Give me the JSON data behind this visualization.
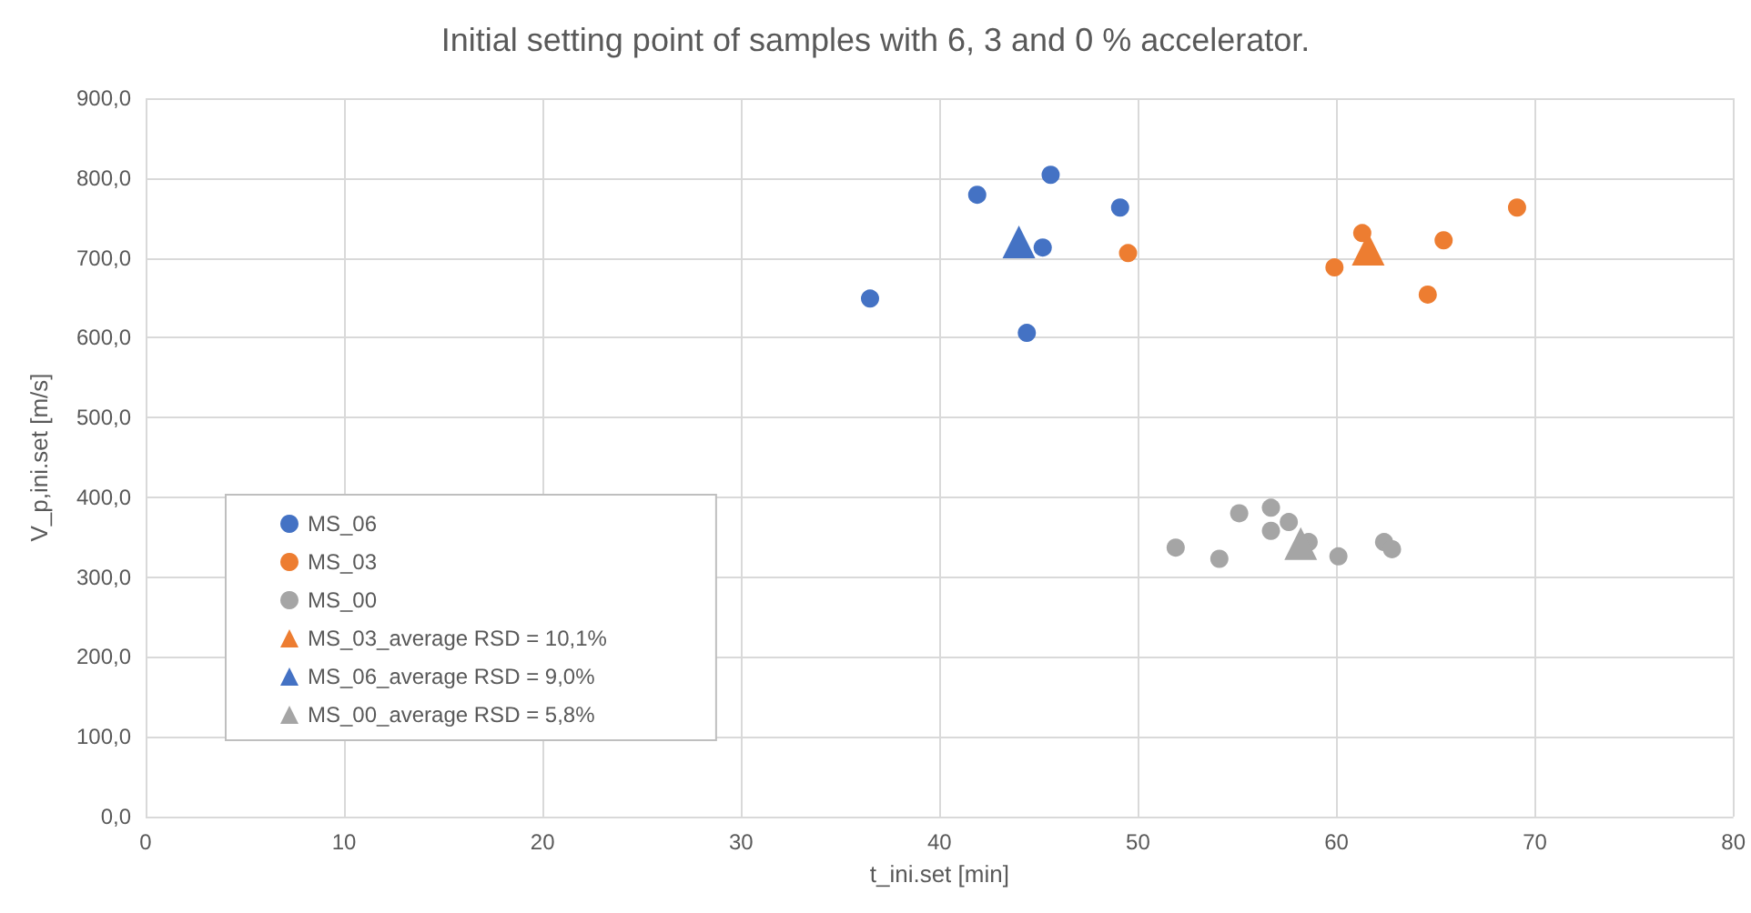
{
  "chart_data": {
    "type": "scatter",
    "title": "Initial setting point of samples with 6, 3 and 0 % accelerator.",
    "xlabel": "t_ini.set [min]",
    "ylabel": "V_p,ini.set [m/s]",
    "xlim": [
      0,
      80
    ],
    "xticks": [
      0,
      10,
      20,
      30,
      40,
      50,
      60,
      70,
      80
    ],
    "ylim": [
      0,
      900
    ],
    "yticks": [
      {
        "value": 0,
        "label": "0,0"
      },
      {
        "value": 100,
        "label": "100,0"
      },
      {
        "value": 200,
        "label": "200,0"
      },
      {
        "value": 300,
        "label": "300,0"
      },
      {
        "value": 400,
        "label": "400,0"
      },
      {
        "value": 500,
        "label": "500,0"
      },
      {
        "value": 600,
        "label": "600,0"
      },
      {
        "value": 700,
        "label": "700,0"
      },
      {
        "value": 800,
        "label": "800,0"
      },
      {
        "value": 900,
        "label": "900,0"
      }
    ],
    "grid": true,
    "legend": "bottom left",
    "series": [
      {
        "name": "MS_06",
        "color": "#4472c4",
        "marker": "circle",
        "x": [
          36.5,
          41.9,
          45.6,
          45.2,
          44.4,
          49.1
        ],
        "values": [
          649,
          779,
          804,
          713,
          606,
          763
        ]
      },
      {
        "name": "MS_03",
        "color": "#ed7d31",
        "marker": "circle",
        "x": [
          49.5,
          59.9,
          61.3,
          65.4,
          64.6,
          69.1
        ],
        "values": [
          706,
          688,
          731,
          722,
          654,
          763
        ]
      },
      {
        "name": "MS_00",
        "color": "#a5a5a5",
        "marker": "circle",
        "x": [
          51.9,
          54.1,
          55.1,
          56.7,
          56.7,
          57.6,
          58.6,
          60.1,
          62.4,
          62.8
        ],
        "values": [
          337,
          323,
          380,
          387,
          358,
          369,
          344,
          326,
          344,
          335
        ]
      },
      {
        "name": "MS_03_average RSD = 10,1%",
        "color": "#ed7d31",
        "marker": "triangle",
        "x": [
          61.6
        ],
        "values": [
          711
        ]
      },
      {
        "name": "MS_06_average RSD = 9,0%",
        "color": "#4472c4",
        "marker": "triangle",
        "x": [
          44.0
        ],
        "values": [
          720
        ]
      },
      {
        "name": "MS_00_average RSD = 5,8%",
        "color": "#a5a5a5",
        "marker": "triangle",
        "x": [
          58.2
        ],
        "values": [
          342
        ]
      }
    ]
  }
}
